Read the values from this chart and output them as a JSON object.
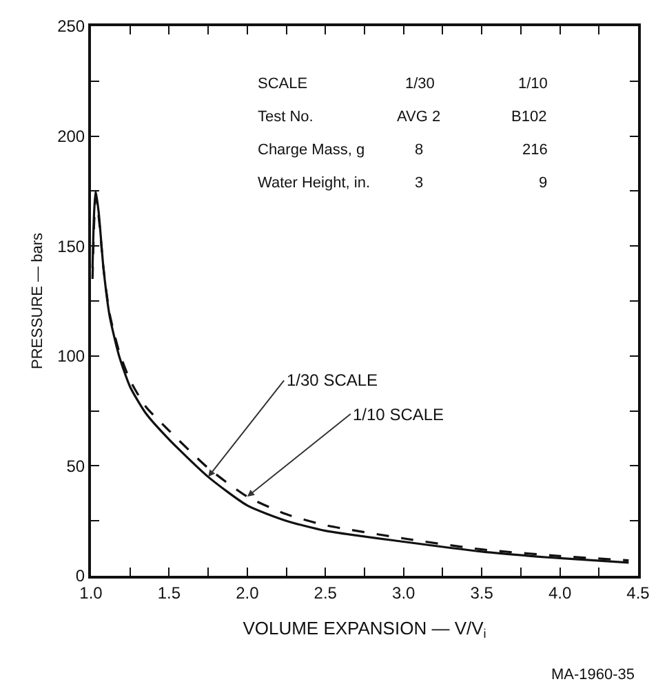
{
  "chart_data": {
    "type": "line",
    "xlabel": "VOLUME EXPANSION — V/V$_{i}$",
    "ylabel": "PRESSURE — bars",
    "xlim": [
      1.0,
      4.5
    ],
    "xticks": [
      {
        "value": 1.0,
        "label": "1.0"
      },
      {
        "value": 1.25,
        "label": null
      },
      {
        "value": 1.5,
        "label": "1.5"
      },
      {
        "value": 1.75,
        "label": null
      },
      {
        "value": 2.0,
        "label": "2.0"
      },
      {
        "value": 2.25,
        "label": null
      },
      {
        "value": 2.5,
        "label": "2.5"
      },
      {
        "value": 2.75,
        "label": null
      },
      {
        "value": 3.0,
        "label": "3.0"
      },
      {
        "value": 3.25,
        "label": null
      },
      {
        "value": 3.5,
        "label": "3.5"
      },
      {
        "value": 3.75,
        "label": null
      },
      {
        "value": 4.0,
        "label": "4.0"
      },
      {
        "value": 4.25,
        "label": null
      },
      {
        "value": 4.5,
        "label": "4.5"
      }
    ],
    "ylim": [
      0,
      250
    ],
    "yticks": [
      0,
      {
        "value": 25,
        "label": null
      },
      50,
      {
        "value": 75,
        "label": null
      },
      100,
      {
        "value": 125,
        "label": null
      },
      150,
      {
        "value": 175,
        "label": null
      },
      200,
      {
        "value": 225,
        "label": null
      },
      250
    ],
    "marker": "none",
    "series": [
      {
        "color": "#111111",
        "line_style": "solid",
        "x": [
          1.01,
          1.02,
          1.03,
          1.05,
          1.08,
          1.12,
          1.18,
          1.25,
          1.35,
          1.5,
          1.75,
          2.0,
          2.25,
          2.5,
          3.0,
          3.5,
          4.0,
          4.44
        ],
        "values": [
          140,
          165,
          175,
          165,
          140,
          118,
          100,
          86,
          74,
          62,
          45,
          32,
          25,
          20.5,
          15.5,
          11,
          8,
          6
        ]
      },
      {
        "color": "#111111",
        "line_style": "dashed",
        "x": [
          1.01,
          1.02,
          1.03,
          1.05,
          1.08,
          1.12,
          1.18,
          1.25,
          1.35,
          1.5,
          1.75,
          2.0,
          2.25,
          2.5,
          3.0,
          3.5,
          4.0,
          4.44
        ],
        "values": [
          135,
          160,
          172,
          163,
          140,
          119,
          102,
          89,
          77,
          66,
          49,
          36,
          28,
          23,
          17,
          12,
          9,
          7
        ]
      }
    ],
    "annotations": [
      "SCALE",
      "1/30",
      "1/10",
      "Test No.",
      "AVG 2",
      "B102",
      "Charge Mass, g",
      "8",
      "216",
      "Water Height, in.",
      "3",
      "9",
      "MA-1960-35",
      {
        "text": "1/30 SCALE",
        "x": 1.75,
        "y": 45
      },
      {
        "text": "1/10 SCALE",
        "x": 2.0,
        "y": 36
      }
    ]
  }
}
